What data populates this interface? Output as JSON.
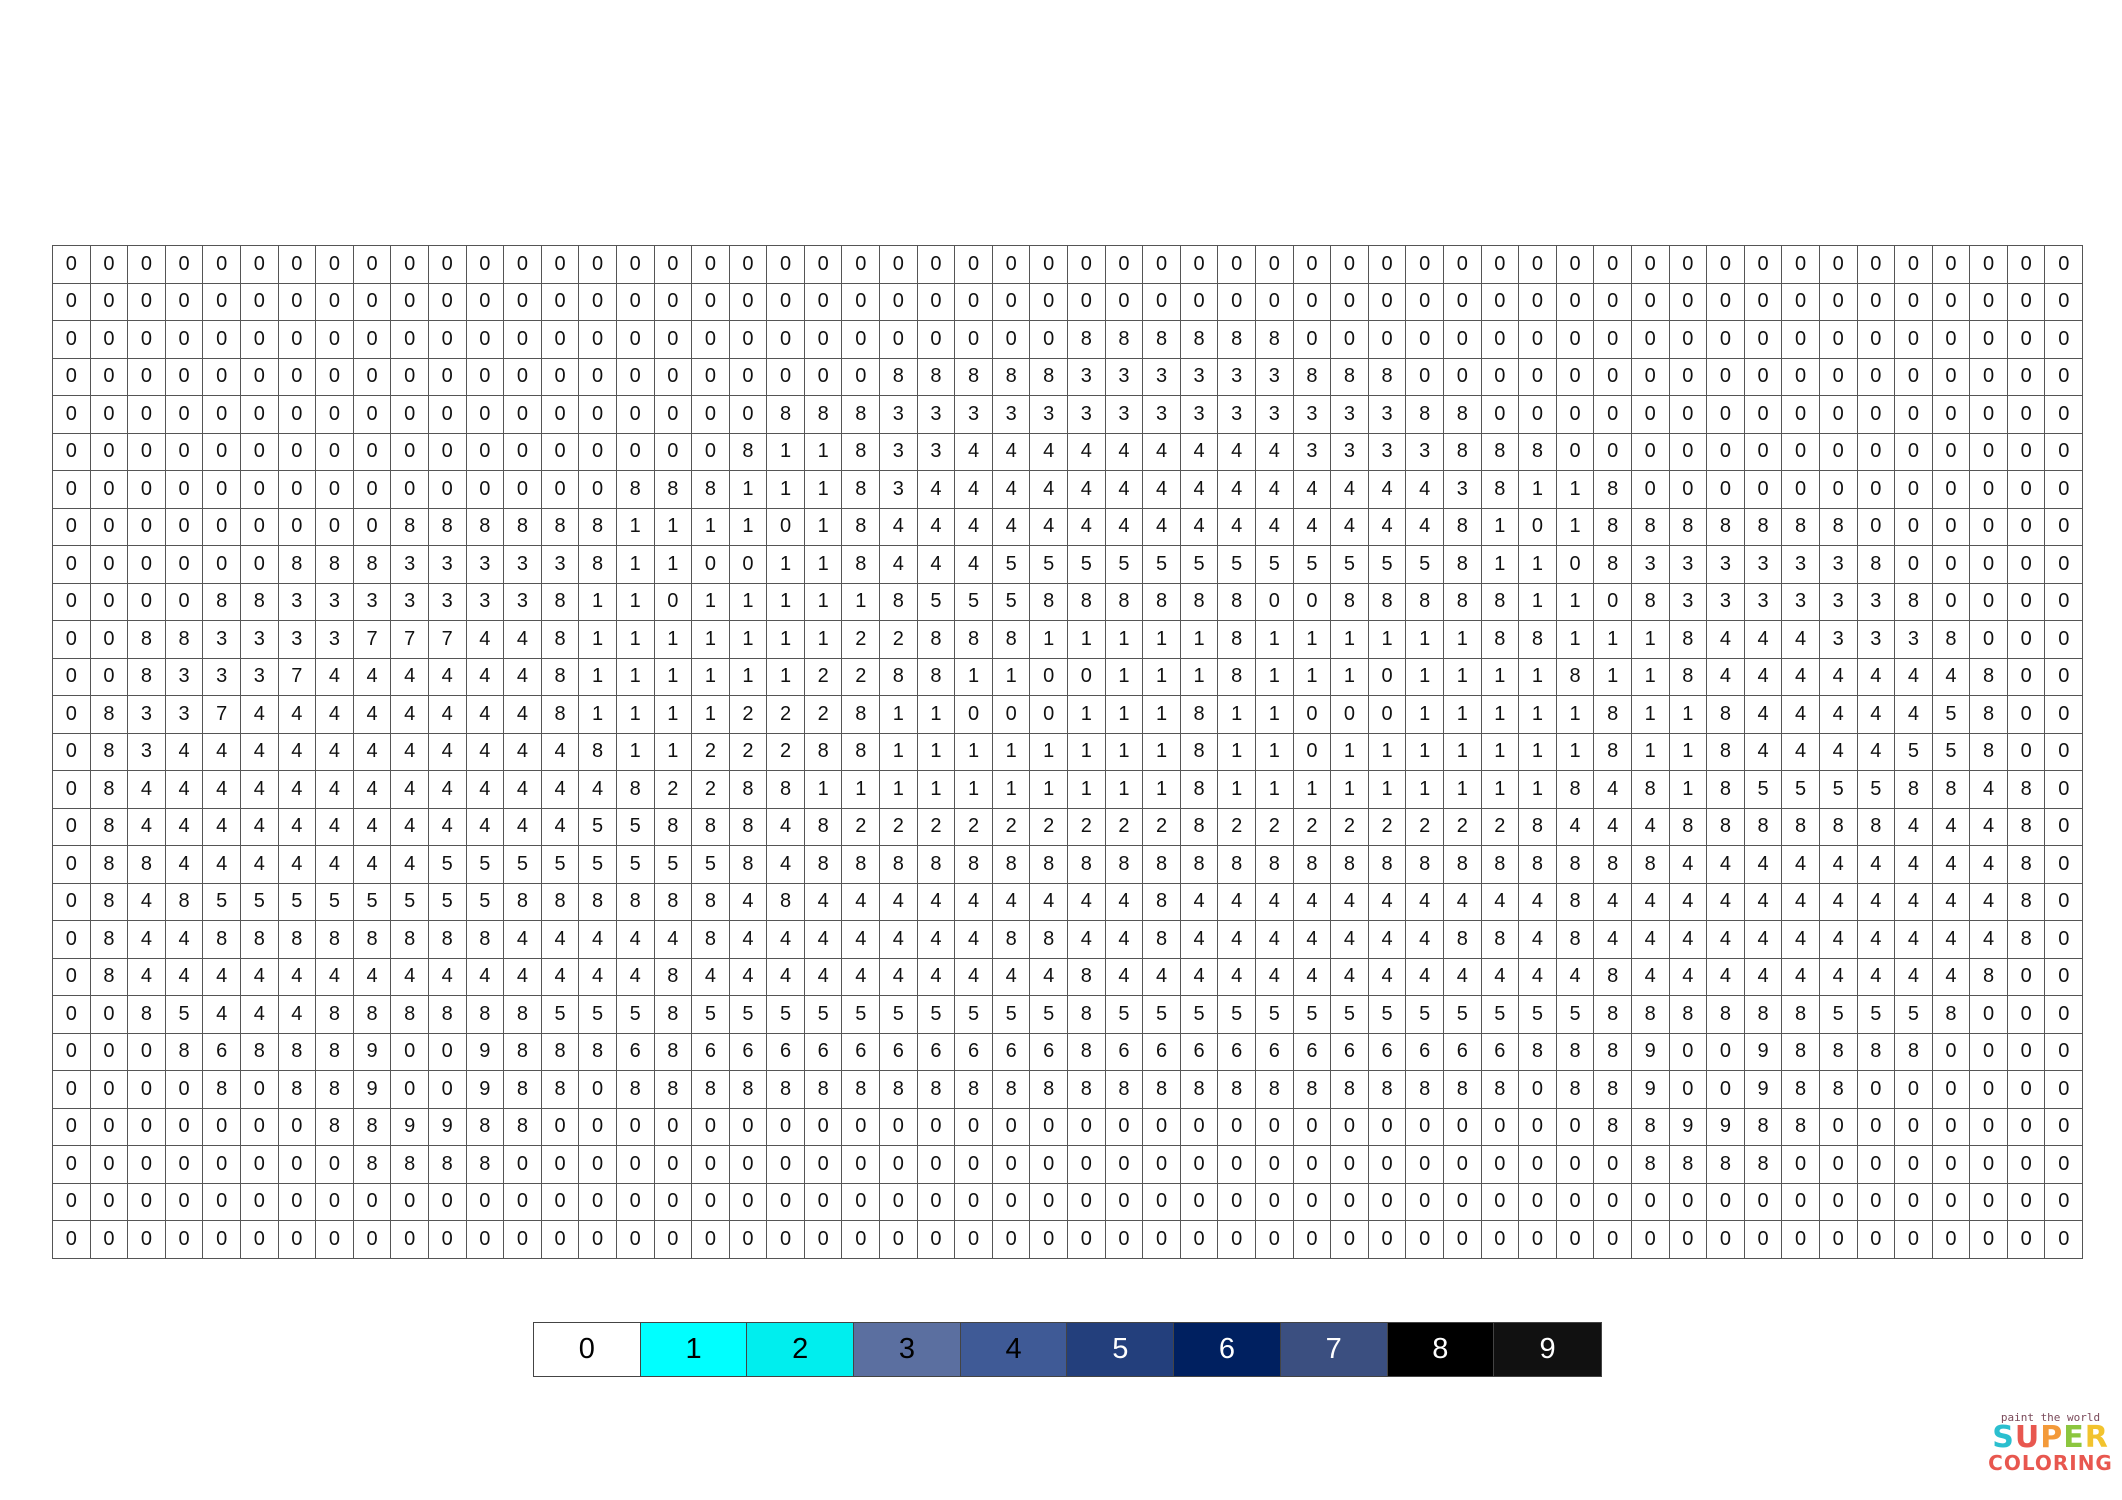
{
  "grid": {
    "rows": [
      "000000000000000000000000000000000000000000000000000000",
      "000000000000000000000000000000000000000000000000000000",
      "000000000000000000000000000888888000000000000000000000",
      "000000000000000000000088888333333888000000000000000000",
      "000000000000000000088833333333333333880000000000000000",
      "000000000000000000811833444444444333388800000000000000",
      "000000000000000888111834444444444444438118000000000000",
      "000000000888888111101844444444444444481018888888000000",
      "000000888333338110011844455555555555581108333333800000",
      "000088333333381101111185558888880088888110833333380000",
      "008833337774481111111228881111181111118811184443338000",
      "008333744444481111112288110011181110111181184444444800",
      "083374444444481111222811000111811000111118118444445800",
      "083444444444448112228811111111811011111118118444455800",
      "084444444444444822881111111111811111111184818555588480",
      "084444444444445588848222222222822222222844488888844480",
      "088444444455555555848888888888888888888888844444444480",
      "084855555555888888484444444448444444444484444444444480",
      "084488888888444448444444488448444444488484444444444480",
      "084444444444444484444444444844444444444448444444444800",
      "008544488888855585555555555855555555555558888885558000",
      "000868889009888686666666666866666666666888900988880000",
      "000080889009880888888888888888888888888088900988000000",
      "000000088998800000000000000000000000000008899880000000",
      "000000008888000000000000000000000000000000888800000000",
      "000000000000000000000000000000000000000000000000000000",
      "000000000000000000000000000000000000000000000000000000"
    ]
  },
  "legend": [
    {
      "label": "0",
      "color": "#ffffff",
      "text_color": "#000000"
    },
    {
      "label": "1",
      "color": "#00ffff",
      "text_color": "#000000"
    },
    {
      "label": "2",
      "color": "#00eeee",
      "text_color": "#000000"
    },
    {
      "label": "3",
      "color": "#5b6fa0",
      "text_color": "#000000"
    },
    {
      "label": "4",
      "color": "#3f5a96",
      "text_color": "#000000"
    },
    {
      "label": "5",
      "color": "#233f7c",
      "text_color": "#ffffff"
    },
    {
      "label": "6",
      "color": "#002060",
      "text_color": "#ffffff"
    },
    {
      "label": "7",
      "color": "#3b4f80",
      "text_color": "#ffffff"
    },
    {
      "label": "8",
      "color": "#000000",
      "text_color": "#ffffff"
    },
    {
      "label": "9",
      "color": "#111111",
      "text_color": "#ffffff"
    }
  ],
  "logo": {
    "tagline": "paint the world",
    "line1": "SUPER",
    "line2": "COLORING",
    "line1_colors": [
      "#2bbfcf",
      "#e8574f",
      "#f39a3a",
      "#8cc63f",
      "#f2c32e"
    ],
    "line2_color": "#e8574f"
  }
}
